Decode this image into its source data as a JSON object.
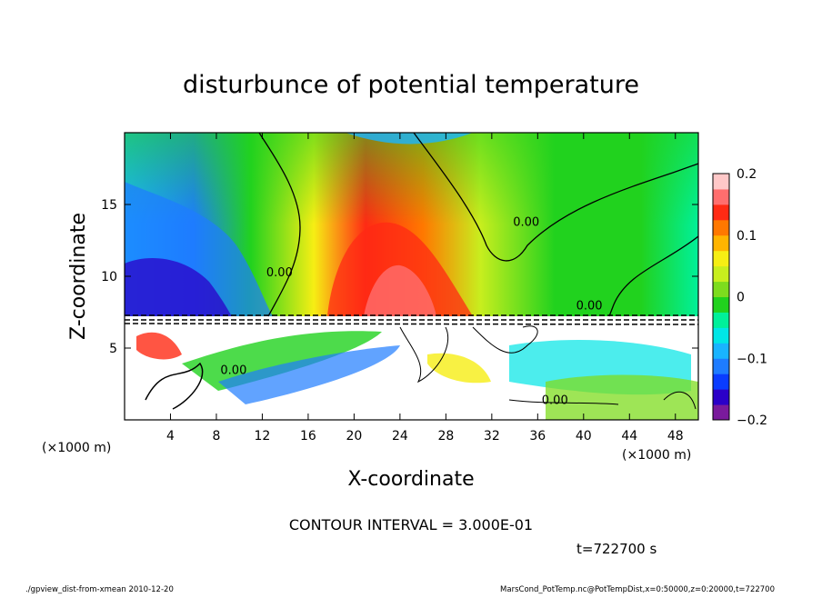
{
  "chart_data": {
    "type": "heatmap",
    "title": "disturbunce of potential temperature",
    "xlabel": "X-coordinate",
    "ylabel": "Z-coordinate",
    "x_unit": "(×1000 m)",
    "y_unit": "(×1000 m)",
    "xlim": [
      0,
      50
    ],
    "ylim": [
      0,
      20
    ],
    "x_ticks": [
      4,
      8,
      12,
      16,
      20,
      24,
      28,
      32,
      36,
      40,
      44,
      48
    ],
    "y_ticks": [
      5,
      10,
      15
    ],
    "colorbar": {
      "min": -0.2,
      "max": 0.2,
      "ticks": [
        {
          "value": 0.2,
          "label": "0.2"
        },
        {
          "value": 0.1,
          "label": "0.1"
        },
        {
          "value": 0,
          "label": "0"
        },
        {
          "value": -0.1,
          "label": "−0.1"
        },
        {
          "value": -0.2,
          "label": "−0.2"
        }
      ],
      "colors": [
        "#7a1a9c",
        "#2b00c8",
        "#0a3cff",
        "#1e7cff",
        "#19b4ff",
        "#00e6e6",
        "#00f09a",
        "#21d21e",
        "#7ddc1e",
        "#c8ee1e",
        "#f6ee14",
        "#ffb400",
        "#ff7800",
        "#ff2a14",
        "#ff6e6e",
        "#ffc8c8"
      ]
    },
    "contour_labels": [
      {
        "x": 13.5,
        "z": 10,
        "text": "0.00"
      },
      {
        "x": 35,
        "z": 13.5,
        "text": "0.00"
      },
      {
        "x": 40.5,
        "z": 7.7,
        "text": "0.00"
      },
      {
        "x": 9.5,
        "z": 3.2,
        "text": "0.00"
      },
      {
        "x": 37.5,
        "z": 1.1,
        "text": "0.00"
      }
    ],
    "contour_interval_text": "CONTOUR INTERVAL = 3.000E-01",
    "time_text": "t=722700 s"
  },
  "footer": {
    "left": "./gpview_dist-from-xmean  2010-12-20",
    "right": "MarsCond_PotTemp.nc@PotTempDist,x=0:50000,z=0:20000,t=722700"
  }
}
